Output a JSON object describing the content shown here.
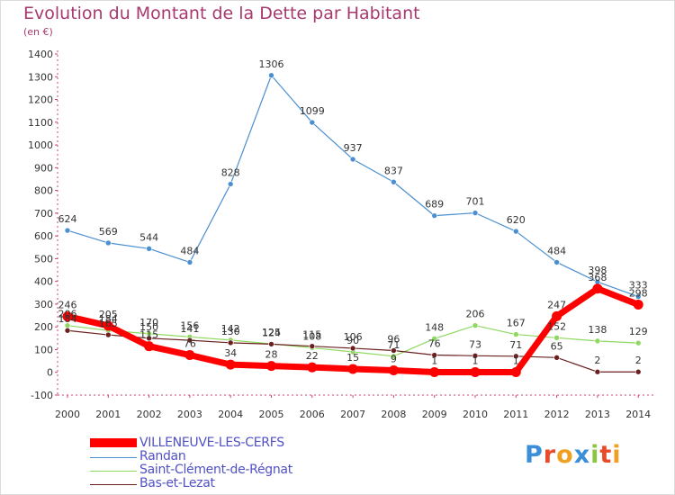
{
  "header": {
    "title": "Evolution du Montant de la Dette par Habitant",
    "subtitle": "(en €)"
  },
  "logo": {
    "text": "Proxiti"
  },
  "chart_data": {
    "type": "line",
    "title": "Evolution du Montant de la Dette par Habitant",
    "subtitle": "(en €)",
    "x": [
      "2000",
      "2001",
      "2002",
      "2003",
      "2004",
      "2005",
      "2006",
      "2007",
      "2008",
      "2009",
      "2010",
      "2011",
      "2012",
      "2013",
      "2014"
    ],
    "yticks": [
      -100,
      0,
      100,
      200,
      300,
      400,
      500,
      600,
      700,
      800,
      900,
      1000,
      1100,
      1200,
      1300,
      1400
    ],
    "ylim": [
      -100,
      1400
    ],
    "grid": false,
    "legend_position": "bottom-left",
    "series": [
      {
        "name": "VILLENEUVE-LES-CERFS",
        "color": "#ff0000",
        "values": [
          246,
          205,
          115,
          76,
          34,
          28,
          22,
          15,
          9,
          1,
          1,
          1,
          247,
          368,
          298
        ],
        "labels": [
          "246",
          "205",
          "115",
          "76",
          "34",
          "28",
          "22",
          "15",
          "9",
          "1",
          "1",
          "1",
          "247",
          "368",
          "298"
        ]
      },
      {
        "name": "Randan",
        "color": "#4a8fd0",
        "values": [
          624,
          569,
          544,
          484,
          828,
          1306,
          1099,
          937,
          837,
          689,
          701,
          620,
          484,
          398,
          333
        ],
        "labels": [
          "624",
          "569",
          "544",
          "484",
          "828",
          "1306",
          "1099",
          "937",
          "837",
          "689",
          "701",
          "620",
          "484",
          "398",
          "333"
        ]
      },
      {
        "name": "Saint-Clément-de-Régnat",
        "color": "#8ed860",
        "values": [
          206,
          184,
          170,
          156,
          142,
          125,
          108,
          90,
          71,
          148,
          206,
          167,
          152,
          138,
          129
        ],
        "labels": [
          "206",
          "184",
          "170",
          "156",
          "142",
          "125",
          "108",
          "90",
          "71",
          "148",
          "206",
          "167",
          "152",
          "138",
          "129"
        ]
      },
      {
        "name": "Bas-et-Lezat",
        "color": "#6b2020",
        "values": [
          184,
          165,
          150,
          141,
          130,
          124,
          115,
          106,
          96,
          76,
          73,
          71,
          65,
          2,
          2
        ],
        "labels": [
          "184",
          "165",
          "150",
          "141",
          "130",
          "124",
          "115",
          "106",
          "96",
          "76",
          "73",
          "71",
          "65",
          "2",
          "2"
        ]
      }
    ]
  }
}
